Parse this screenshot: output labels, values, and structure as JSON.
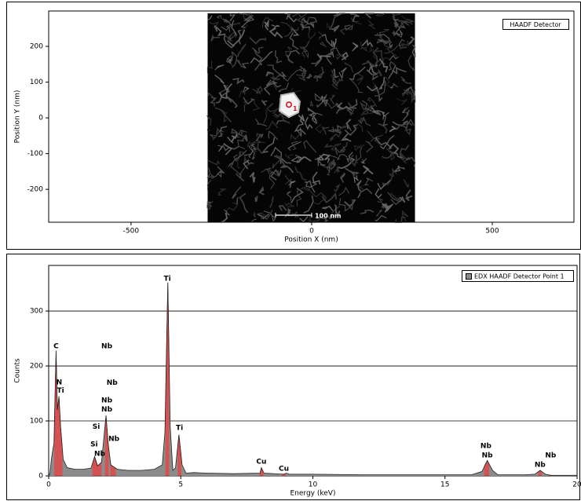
{
  "chart_data": [
    {
      "type": "image",
      "xlabel": "Position X (nm)",
      "ylabel": "Position Y (nm)",
      "xlim": [
        -728,
        726
      ],
      "ylim": [
        -292,
        299
      ],
      "xticks": [
        -500,
        0,
        500
      ],
      "yticks": [
        -200,
        -100,
        0,
        100,
        200
      ],
      "image_xlim": [
        -288,
        286
      ],
      "legend": "HAADF Detector",
      "points": [
        {
          "label": "1",
          "x": -63,
          "y": 37,
          "color": "#e0101c"
        }
      ],
      "scale_bar": {
        "label": "100 nm",
        "length": 100
      }
    },
    {
      "type": "area",
      "xlabel": "Energy (keV)",
      "ylabel": "Counts",
      "xlim": [
        0,
        20
      ],
      "ylim": [
        0,
        383
      ],
      "xticks": [
        0,
        5,
        10,
        15,
        20
      ],
      "yticks": [
        0,
        100,
        200,
        300
      ],
      "grid": true,
      "x": [
        0,
        0.05,
        0.1,
        0.2,
        0.28,
        0.33,
        0.39,
        0.45,
        0.55,
        0.7,
        1.0,
        1.3,
        1.6,
        1.74,
        1.85,
        2.0,
        2.17,
        2.25,
        2.35,
        2.6,
        3.0,
        3.5,
        4.0,
        4.3,
        4.4,
        4.51,
        4.6,
        4.7,
        4.8,
        4.93,
        5.05,
        5.2,
        5.5,
        6.0,
        7.0,
        8.0,
        8.05,
        8.15,
        8.9,
        9.0,
        9.1,
        10,
        12,
        14,
        16,
        16.4,
        16.6,
        16.8,
        17.0,
        18,
        18.4,
        18.6,
        18.8,
        19,
        20
      ],
      "series": [
        {
          "name": "EDX HAADF Detector Point 1",
          "color": "#8c8c8c",
          "values": [
            0,
            5,
            30,
            60,
            228,
            120,
            145,
            90,
            30,
            15,
            12,
            12,
            14,
            35,
            18,
            25,
            110,
            60,
            20,
            12,
            10,
            10,
            12,
            20,
            80,
            352,
            90,
            10,
            15,
            75,
            20,
            5,
            6,
            5,
            4,
            5,
            15,
            5,
            3,
            5,
            3,
            3,
            2,
            2,
            2,
            8,
            28,
            10,
            2,
            2,
            3,
            10,
            3,
            1,
            1
          ]
        }
      ],
      "annotations": [
        {
          "text": "C",
          "x": 0.28,
          "y": 236
        },
        {
          "text": "N",
          "x": 0.4,
          "y": 170
        },
        {
          "text": "Ti",
          "x": 0.45,
          "y": 155
        },
        {
          "text": "Nb",
          "x": 2.2,
          "y": 236
        },
        {
          "text": "Nb",
          "x": 2.4,
          "y": 169
        },
        {
          "text": "Nb",
          "x": 2.2,
          "y": 137
        },
        {
          "text": "Nb",
          "x": 2.2,
          "y": 121
        },
        {
          "text": "Si",
          "x": 1.8,
          "y": 89
        },
        {
          "text": "Nb",
          "x": 2.47,
          "y": 67
        },
        {
          "text": "Si",
          "x": 1.72,
          "y": 57
        },
        {
          "text": "Nb",
          "x": 1.93,
          "y": 40
        },
        {
          "text": "Ti",
          "x": 4.49,
          "y": 359
        },
        {
          "text": "Ti",
          "x": 4.95,
          "y": 87
        },
        {
          "text": "Cu",
          "x": 8.05,
          "y": 26
        },
        {
          "text": "Cu",
          "x": 8.9,
          "y": 13
        },
        {
          "text": "Nb",
          "x": 16.55,
          "y": 54
        },
        {
          "text": "Nb",
          "x": 16.6,
          "y": 37
        },
        {
          "text": "Nb",
          "x": 18.6,
          "y": 20
        },
        {
          "text": "Nb",
          "x": 19.0,
          "y": 37
        }
      ]
    }
  ]
}
